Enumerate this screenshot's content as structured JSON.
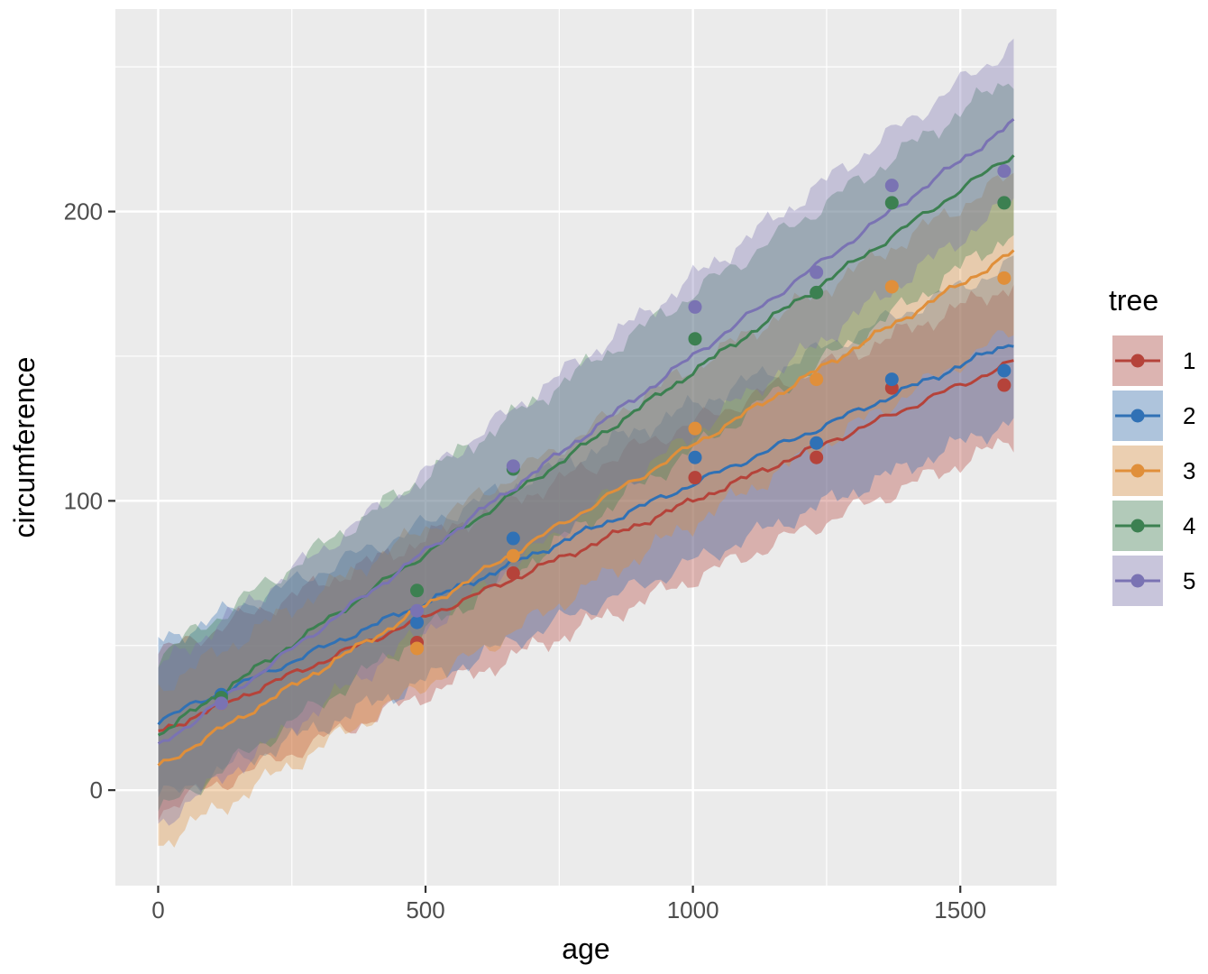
{
  "chart_data": {
    "type": "line",
    "xlabel": "age",
    "ylabel": "circumference",
    "xlim": [
      -80,
      1680
    ],
    "ylim": [
      -33,
      270
    ],
    "x_ticks": [
      0,
      500,
      1000,
      1500
    ],
    "x_tick_labels": [
      "0",
      "500",
      "1000",
      "1500"
    ],
    "x_minor_ticks": [
      250,
      750,
      1250
    ],
    "y_ticks": [
      0,
      100,
      200
    ],
    "y_tick_labels": [
      "0",
      "100",
      "200"
    ],
    "y_minor_ticks": [
      50,
      150,
      250
    ],
    "grid": true,
    "legend": {
      "title": "tree",
      "position": "right"
    },
    "x_observed": [
      118,
      484,
      664,
      1004,
      1231,
      1372,
      1582
    ],
    "series": [
      {
        "name": "1",
        "color": "#B5433A",
        "points": [
          30,
          51,
          75,
          108,
          115,
          139,
          140
        ],
        "fit": {
          "x0": 0,
          "y0": 20,
          "x1": 1600,
          "y1": 148
        },
        "band_halfwidth": 27
      },
      {
        "name": "2",
        "color": "#3071B5",
        "points": [
          33,
          58,
          87,
          115,
          120,
          142,
          145
        ],
        "fit": {
          "x0": 0,
          "y0": 24,
          "x1": 1600,
          "y1": 155
        },
        "band_halfwidth": 27
      },
      {
        "name": "3",
        "color": "#E08F3A",
        "points": [
          30,
          49,
          81,
          125,
          142,
          174,
          177
        ],
        "fit": {
          "x0": 0,
          "y0": 8,
          "x1": 1600,
          "y1": 186
        },
        "band_halfwidth": 27
      },
      {
        "name": "4",
        "color": "#3C8051",
        "points": [
          32,
          69,
          111,
          156,
          172,
          203,
          203
        ],
        "fit": {
          "x0": 0,
          "y0": 19,
          "x1": 1600,
          "y1": 220
        },
        "band_halfwidth": 27
      },
      {
        "name": "5",
        "color": "#7A73B3",
        "points": [
          30,
          62,
          112,
          167,
          179,
          209,
          214
        ],
        "fit": {
          "x0": 0,
          "y0": 15,
          "x1": 1600,
          "y1": 231
        },
        "band_halfwidth": 27
      }
    ]
  }
}
